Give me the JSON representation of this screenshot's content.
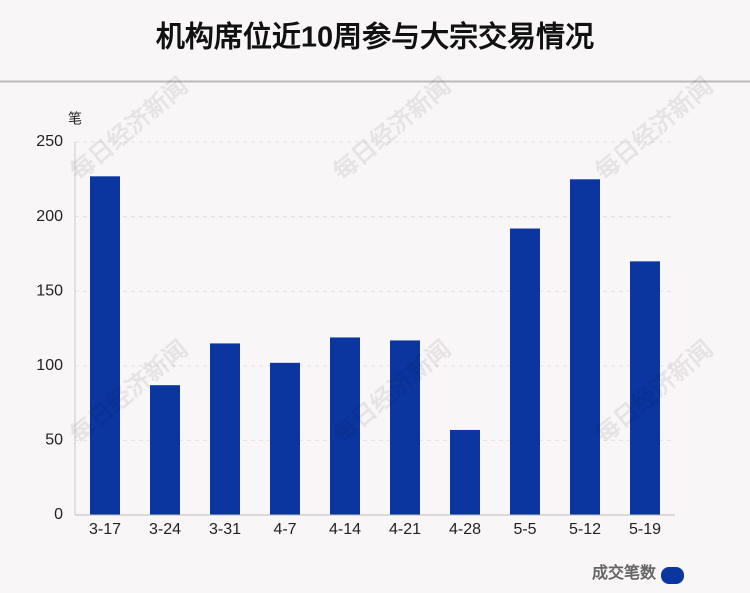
{
  "chart_data": {
    "type": "bar",
    "title": "机构席位近10周参与大宗交易情况",
    "y_unit": "笔",
    "categories": [
      "3-17",
      "3-24",
      "3-31",
      "4-7",
      "4-14",
      "4-21",
      "4-28",
      "5-5",
      "5-12",
      "5-19"
    ],
    "series": [
      {
        "name": "成交笔数",
        "color": "#0b36a0",
        "values": [
          227,
          87,
          115,
          102,
          119,
          117,
          57,
          192,
          225,
          170
        ]
      }
    ],
    "ylim": [
      0,
      250
    ],
    "yticks": [
      0,
      50,
      100,
      150,
      200,
      250
    ],
    "grid": true,
    "legend": "bottom-right",
    "watermark": "每日经济新闻"
  }
}
